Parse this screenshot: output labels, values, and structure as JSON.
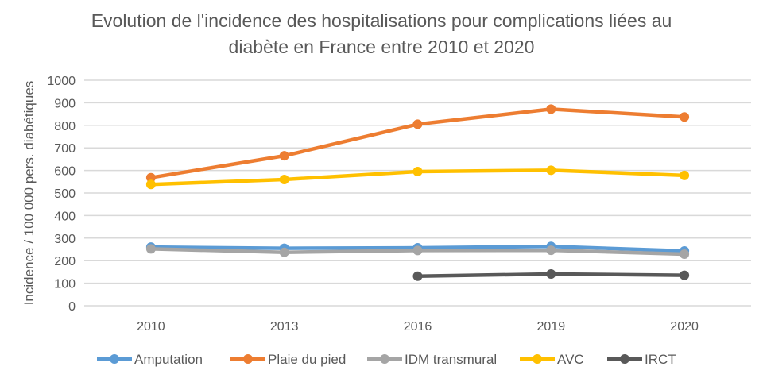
{
  "chart_data": {
    "type": "line",
    "title_lines": [
      "Evolution de l'incidence des hospitalisations pour complications liées au",
      "diabète en France entre 2010 et 2020"
    ],
    "xlabel": "",
    "ylabel": "Incidence / 100 000 pers. diabétiques",
    "categories": [
      "2010",
      "2013",
      "2016",
      "2019",
      "2020"
    ],
    "ylim": [
      0,
      1000
    ],
    "yticks": [
      "0",
      "100",
      "200",
      "300",
      "400",
      "500",
      "600",
      "700",
      "800",
      "900",
      "1000"
    ],
    "grid": true,
    "legend_position": "bottom",
    "series": [
      {
        "name": "Amputation",
        "color": "#5B9BD5",
        "values": [
          260,
          255,
          257,
          263,
          243
        ]
      },
      {
        "name": "Plaie du pied",
        "color": "#ED7D31",
        "values": [
          568,
          665,
          805,
          872,
          837
        ]
      },
      {
        "name": "IDM transmural",
        "color": "#A5A5A5",
        "values": [
          252,
          237,
          245,
          246,
          229
        ]
      },
      {
        "name": "AVC",
        "color": "#FFC000",
        "values": [
          538,
          560,
          595,
          601,
          578
        ]
      },
      {
        "name": "IRCT",
        "color": "#595959",
        "values": [
          null,
          null,
          131,
          141,
          135
        ]
      }
    ]
  }
}
